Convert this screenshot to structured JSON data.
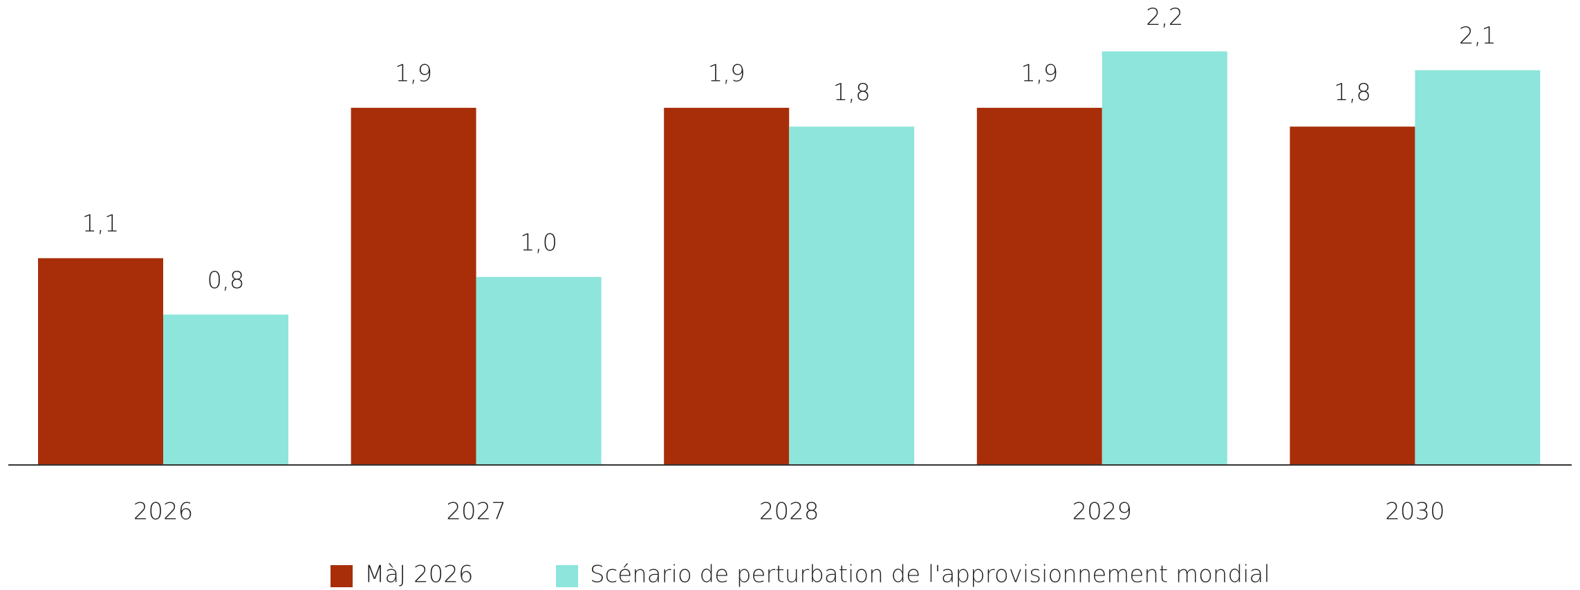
{
  "chart_data": {
    "type": "bar",
    "categories": [
      "2026",
      "2027",
      "2028",
      "2029",
      "2030"
    ],
    "series": [
      {
        "name": "MàJ 2026",
        "color": "#a82e0a",
        "values": [
          1.1,
          1.9,
          1.9,
          1.9,
          1.8
        ],
        "value_labels": [
          "1,1",
          "1,9",
          "1,9",
          "1,9",
          "1,8"
        ]
      },
      {
        "name": "Scénario de perturbation de l'approvisionnement mondial",
        "color": "#8de5db",
        "values": [
          0.8,
          1.0,
          1.8,
          2.2,
          2.1
        ],
        "value_labels": [
          "0,8",
          "1,0",
          "1,8",
          "2,2",
          "2,1"
        ]
      }
    ],
    "ylim": [
      0,
      2.4
    ]
  }
}
